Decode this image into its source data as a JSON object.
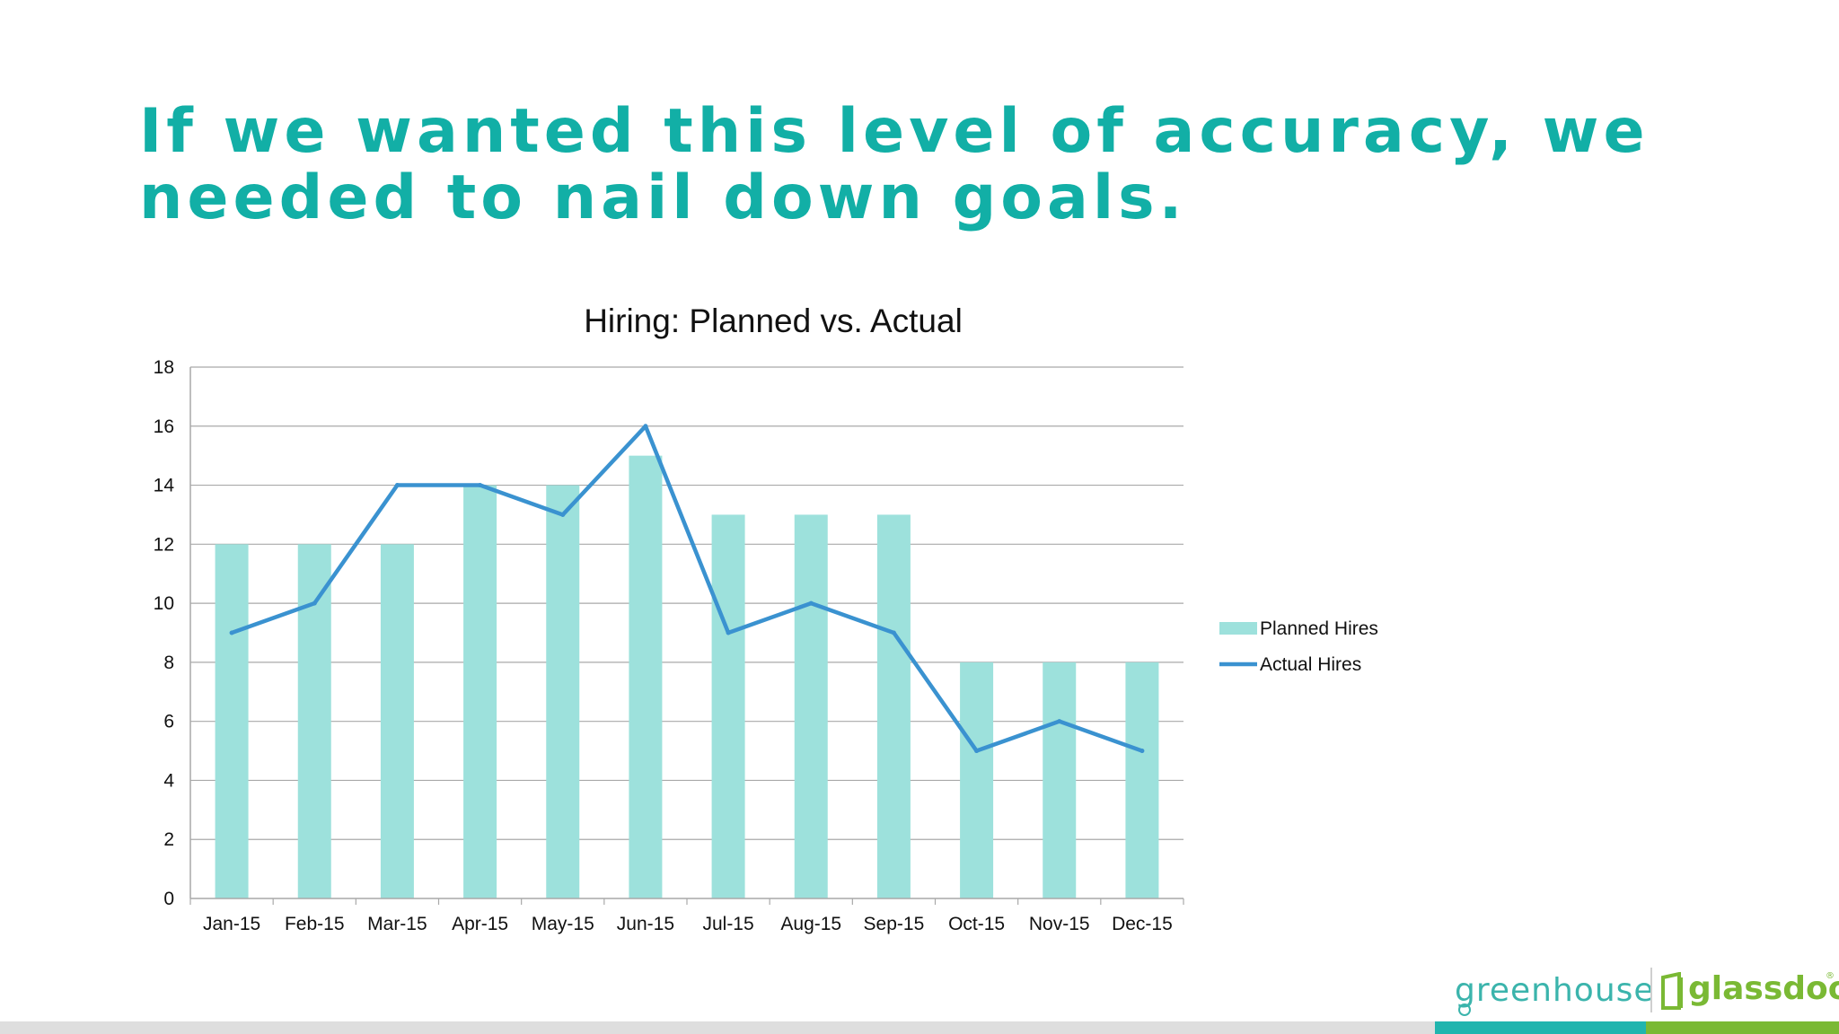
{
  "slide": {
    "headline": "If we wanted this level of accuracy, we needed to nail down goals."
  },
  "chart_data": {
    "type": "bar",
    "title": "Hiring: Planned vs. Actual",
    "xlabel": "",
    "ylabel": "",
    "categories": [
      "Jan-15",
      "Feb-15",
      "Mar-15",
      "Apr-15",
      "May-15",
      "Jun-15",
      "Jul-15",
      "Aug-15",
      "Sep-15",
      "Oct-15",
      "Nov-15",
      "Dec-15"
    ],
    "ylim": [
      0,
      18
    ],
    "yticks": [
      0,
      2,
      4,
      6,
      8,
      10,
      12,
      14,
      16,
      18
    ],
    "grid": true,
    "legend_position": "right",
    "series": [
      {
        "name": "Planned Hires",
        "type": "bar",
        "color": "#9de1dc",
        "values": [
          12,
          12,
          12,
          14,
          14,
          15,
          13,
          13,
          13,
          8,
          8,
          8
        ]
      },
      {
        "name": "Actual Hires",
        "type": "line",
        "color": "#3a92d0",
        "values": [
          9,
          10,
          14,
          14,
          13,
          16,
          9,
          10,
          9,
          5,
          6,
          5
        ]
      }
    ]
  },
  "branding": {
    "logo_left": "greenhouse",
    "logo_right": "glassdoor",
    "colors": {
      "teal": "#12afa6",
      "green": "#7ab934",
      "bar_teal": "#20b5ae",
      "bar_gray": "#dedede"
    }
  }
}
